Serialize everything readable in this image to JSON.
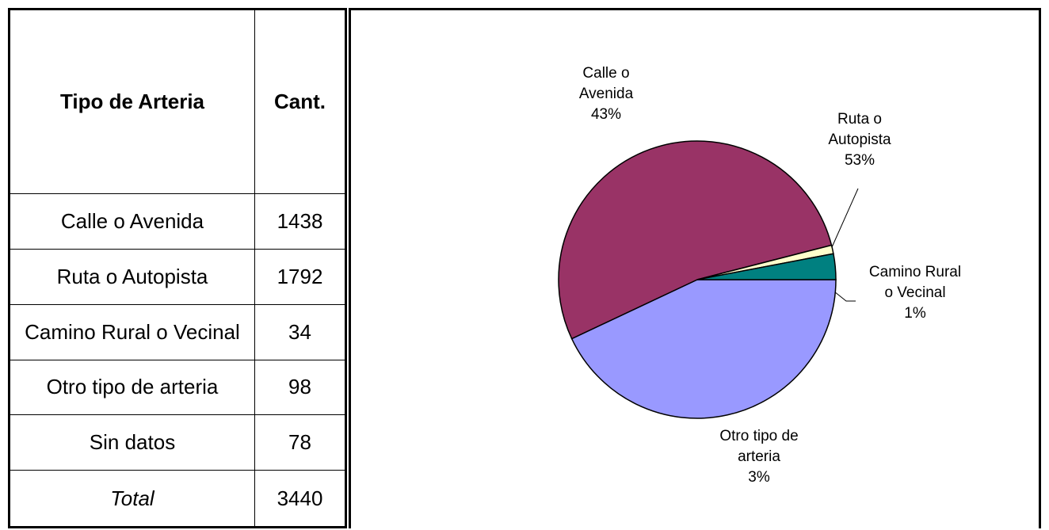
{
  "table": {
    "header": [
      "Tipo de Arteria",
      "Cant."
    ],
    "rows": [
      [
        "Calle o Avenida",
        1438
      ],
      [
        "Ruta o Autopista",
        1792
      ],
      [
        "Camino Rural o Vecinal",
        34
      ],
      [
        "Otro tipo de arteria",
        98
      ],
      [
        "Sin datos",
        78
      ]
    ],
    "total": [
      "Total",
      3440
    ]
  },
  "chart_data": {
    "type": "pie",
    "categories": [
      "Calle o Avenida",
      "Ruta o Autopista",
      "Camino Rural o Vecinal",
      "Otro tipo de arteria"
    ],
    "values": [
      43,
      53,
      1,
      3
    ],
    "value_labels": [
      "43%",
      "53%",
      "1%",
      "3%"
    ],
    "colors": [
      "#9999ff",
      "#993366",
      "#ffffcc",
      "#008080"
    ]
  }
}
